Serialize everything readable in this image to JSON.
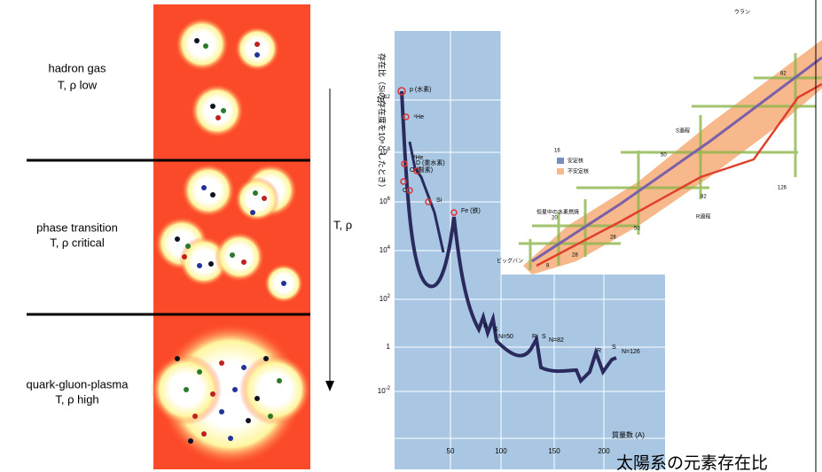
{
  "left_panel": {
    "phases": [
      {
        "name": "hadron gas",
        "condition": "T, ρ low"
      },
      {
        "name": "phase transition",
        "condition": "T, ρ critical"
      },
      {
        "name": "quark-gluon-plasma",
        "condition": "T, ρ high"
      }
    ],
    "axis_label": "T, ρ"
  },
  "abundance_chart": {
    "y_axis_label": "存在比（Siの存在度を10⁶としたとき）",
    "y_ticks": [
      {
        "base": "10",
        "exp": "12"
      },
      {
        "base": "10",
        "exp": "8"
      },
      {
        "base": "10",
        "exp": "6"
      },
      {
        "base": "10",
        "exp": "4"
      },
      {
        "base": "10",
        "exp": "2"
      },
      "1",
      {
        "base": "10",
        "exp": "-2"
      }
    ],
    "x_ticks": [
      "50",
      "100",
      "150",
      "200"
    ],
    "x_axis_label": "質量数 (A)",
    "annotations": [
      "p (水素)",
      "⁴He",
      "³He",
      "D (重水素)",
      "O (酸素)",
      "C",
      "Si",
      "Fe (鉄)",
      "R",
      "S",
      "N=50",
      "R",
      "S",
      "N=82",
      "R",
      "S",
      "N=126"
    ]
  },
  "nuclear_chart": {
    "labels": [
      "ウラン",
      "S過程",
      "R過程",
      "16",
      "安定核",
      "不安定核",
      "恒星中の水素燃焼",
      "ビッグバン",
      "82",
      "50",
      "126",
      "82",
      "50",
      "28",
      "20",
      "28",
      "8"
    ]
  },
  "caption": "太陽系の元素存在比"
}
